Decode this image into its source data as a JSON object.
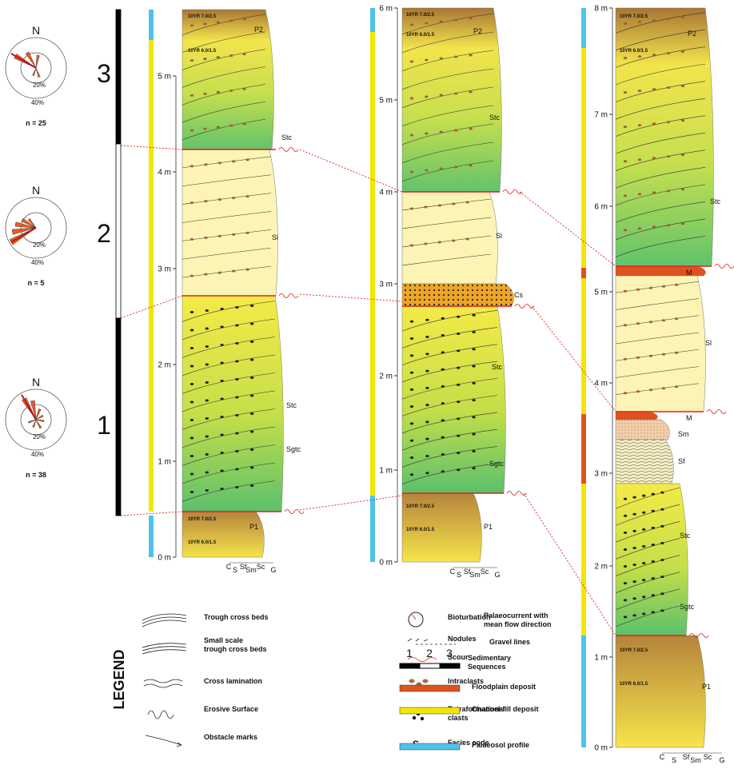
{
  "rose_diagrams": [
    {
      "sequence": "3",
      "north": "N",
      "rings": [
        "20%",
        "40%"
      ],
      "n": "n = 25"
    },
    {
      "sequence": "2",
      "north": "N",
      "rings": [
        "20%",
        "40%"
      ],
      "n": "n = 5"
    },
    {
      "sequence": "1",
      "north": "N",
      "rings": [
        "20%",
        "40%"
      ],
      "n": "n = 38"
    }
  ],
  "logs": [
    {
      "depth_ticks": [
        "0 m",
        "1 m",
        "2 m",
        "3 m",
        "4 m",
        "5 m"
      ],
      "facies": [
        "P2",
        "Stc",
        "Sl",
        "Stc",
        "Sgtc",
        "P1"
      ],
      "colour_codes": [
        "10YR 7.0/2.5",
        "10YR 6.0/1.5",
        "10YR 7.0/2.5",
        "10YR 6.0/1.5"
      ],
      "grain_sizes": [
        "C",
        "S",
        "Sf",
        "Sm",
        "Sc",
        "G"
      ]
    },
    {
      "depth_ticks": [
        "0 m",
        "1 m",
        "2 m",
        "3 m",
        "4 m",
        "5 m",
        "6 m"
      ],
      "facies": [
        "P2",
        "Stc",
        "Sl",
        "Cs",
        "Stc",
        "Sgtc",
        "P1"
      ],
      "colour_codes": [
        "10YR 7.0/2.5",
        "10YR 6.0/1.5",
        "10YR 7.0/2.5",
        "10YR 6.0/1.5"
      ],
      "grain_sizes": [
        "C",
        "S",
        "Sf",
        "Sm",
        "Sc",
        "G"
      ]
    },
    {
      "depth_ticks": [
        "0 m",
        "1 m",
        "2 m",
        "3 m",
        "4 m",
        "5 m",
        "6 m",
        "7 m",
        "8 m"
      ],
      "facies": [
        "P2",
        "Stc",
        "M",
        "Sl",
        "M",
        "Sm",
        "Sf",
        "Stc",
        "Sgtc",
        "P1"
      ],
      "colour_codes": [
        "10YR 7.0/2.5",
        "10YR 6.0/1.5",
        "10YR 7.0/2.5",
        "10YR 6.0/1.5"
      ],
      "grain_sizes": [
        "C",
        "S",
        "Sf",
        "Sm",
        "Sc",
        "G"
      ]
    }
  ],
  "legend": {
    "title": "LEGEND",
    "items": [
      {
        "label": [
          "Trough cross beds"
        ]
      },
      {
        "label": [
          "Small scale",
          "trough cross beds"
        ]
      },
      {
        "label": [
          "Cross lamination"
        ]
      },
      {
        "label": [
          "Erosive Surface"
        ]
      },
      {
        "label": [
          "Obstacle marks"
        ]
      },
      {
        "label": [
          "Bioturbation"
        ]
      },
      {
        "label": [
          "Nodules"
        ]
      },
      {
        "label": [
          "Scour"
        ]
      },
      {
        "label": [
          "Intraclasts"
        ]
      },
      {
        "label": [
          "Extraformational",
          "clasts"
        ]
      },
      {
        "label": [
          "Facies code"
        ],
        "symbol": "S"
      },
      {
        "label": [
          "Palaeocurrent with",
          "mean flow direction"
        ]
      },
      {
        "label": [
          "Gravel lines"
        ]
      },
      {
        "label": [
          "Sedimentary",
          "Sequences"
        ],
        "symbol": [
          "1",
          "2",
          "3"
        ]
      },
      {
        "label": [
          "Floodplain deposit"
        ]
      },
      {
        "label": [
          "Channel-fill deposit"
        ]
      },
      {
        "label": [
          "Palaeosol profile"
        ]
      }
    ]
  }
}
